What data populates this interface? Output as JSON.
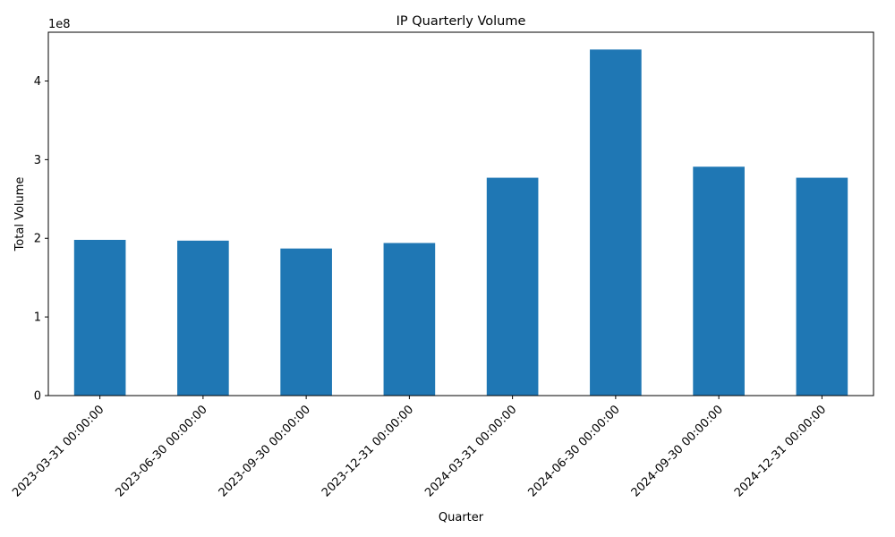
{
  "chart_data": {
    "type": "bar",
    "title": "IP Quarterly Volume",
    "xlabel": "Quarter",
    "ylabel": "Total Volume",
    "y_multiplier_label": "1e8",
    "categories": [
      "2023-03-31 00:00:00",
      "2023-06-30 00:00:00",
      "2023-09-30 00:00:00",
      "2023-12-31 00:00:00",
      "2024-03-31 00:00:00",
      "2024-06-30 00:00:00",
      "2024-09-30 00:00:00",
      "2024-12-31 00:00:00"
    ],
    "values": [
      198000000,
      197000000,
      187000000,
      194000000,
      277000000,
      440000000,
      291000000,
      277000000
    ],
    "ylim": [
      0,
      462000000
    ],
    "yticks": [
      0,
      100000000,
      200000000,
      300000000,
      400000000
    ],
    "ytick_labels": [
      "0",
      "1",
      "2",
      "3",
      "4"
    ],
    "bar_color": "#1f77b4",
    "grid": false,
    "legend": "none"
  }
}
